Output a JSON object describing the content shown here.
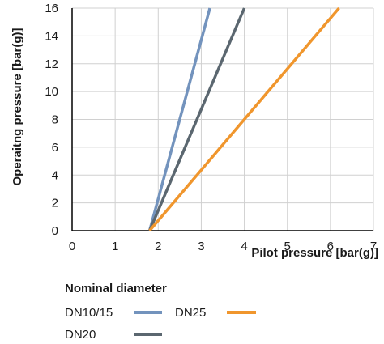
{
  "chart_data": {
    "type": "line",
    "title": "",
    "xlabel": "Pilot pressure [bar(g)]",
    "ylabel": "Operaitng pressure [bar(g)]",
    "xlim": [
      0,
      7
    ],
    "ylim": [
      0,
      16
    ],
    "xticks": [
      0,
      1,
      2,
      3,
      4,
      5,
      6,
      7
    ],
    "yticks": [
      0,
      2,
      4,
      6,
      8,
      10,
      12,
      14,
      16
    ],
    "grid": {
      "x": true,
      "y": true
    },
    "legend": {
      "title": "Nominal diameter",
      "placement": "bottom-left"
    },
    "series": [
      {
        "name": "DN10/15",
        "color": "#7393BD",
        "x": [
          1.8,
          3.2
        ],
        "y": [
          0,
          16
        ]
      },
      {
        "name": "DN20",
        "color": "#5B6770",
        "x": [
          1.8,
          4.0
        ],
        "y": [
          0,
          16
        ]
      },
      {
        "name": "DN25",
        "color": "#F0962D",
        "x": [
          1.8,
          6.2
        ],
        "y": [
          0,
          16
        ]
      }
    ]
  }
}
